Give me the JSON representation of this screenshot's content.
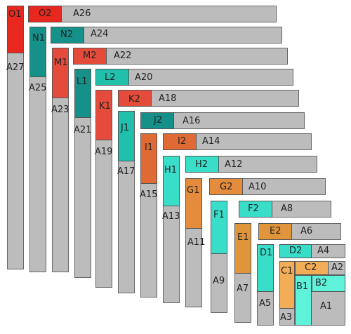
{
  "colors": {
    "gray": "#bcbcbc",
    "red": "#e8281e",
    "red2": "#e54b3a",
    "red3": "#e25a3b",
    "orange": "#df6a33",
    "orange2": "#e48b3c",
    "teal_dark": "#15918a",
    "teal": "#20c0ac",
    "teal_light": "#39dec9",
    "amber": "#e0953a",
    "light_orange": "#f3ad57",
    "mint": "#5ff2db"
  },
  "labels": {
    "A1": "A1",
    "A2": "A2",
    "A3": "A3",
    "A4": "A4",
    "A5": "A5",
    "A6": "A6",
    "A7": "A7",
    "A8": "A8",
    "A9": "A9",
    "A10": "A10",
    "A11": "A11",
    "A12": "A12",
    "A13": "A13",
    "A14": "A14",
    "A15": "A15",
    "A16": "A16",
    "A17": "A17",
    "A18": "A18",
    "A19": "A19",
    "A20": "A20",
    "A21": "A21",
    "A22": "A22",
    "A23": "A23",
    "A24": "A24",
    "A25": "A25",
    "A26": "A26",
    "A27": "A27",
    "O1": "O1",
    "O2": "O2",
    "N1": "N1",
    "N2": "N2",
    "M1": "M1",
    "M2": "M2",
    "L1": "L1",
    "L2": "L2",
    "K1": "K1",
    "K2": "K2",
    "J1": "J1",
    "J2": "J2",
    "I1": "I1",
    "I2": "I2",
    "H1": "H1",
    "H2": "H2",
    "G1": "G1",
    "G2": "G2",
    "F1": "F1",
    "F2": "F2",
    "E1": "E1",
    "E2": "E2",
    "D1": "D1",
    "D2": "D2",
    "C1": "C1",
    "C2": "C2",
    "B1": "B1",
    "B2": "B2"
  }
}
